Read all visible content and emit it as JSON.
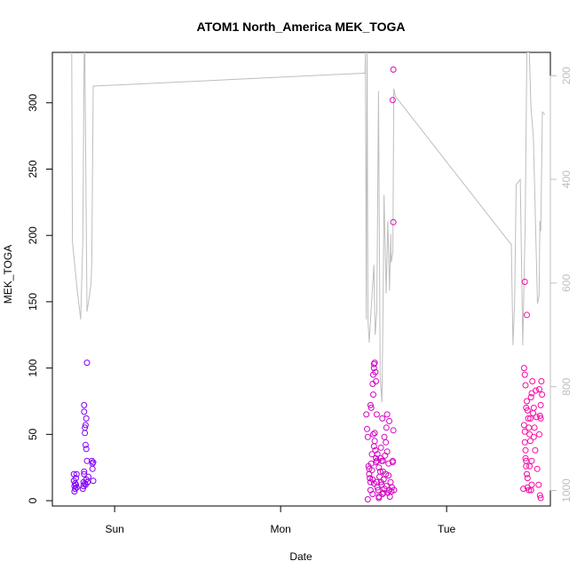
{
  "chart_data": {
    "type": "scatter",
    "title": "ATOM1 North_America MEK_TOGA",
    "xlabel": "Date",
    "ylabel": "MEK_TOGA",
    "x_ticks": [
      {
        "label": "Sun",
        "value": 24
      },
      {
        "label": "Mon",
        "value": 48
      },
      {
        "label": "Tue",
        "value": 72
      }
    ],
    "xlim": [
      15,
      87
    ],
    "ylim": [
      -4,
      338
    ],
    "y_ticks": [
      0,
      50,
      100,
      150,
      200,
      250,
      300
    ],
    "y2lim": [
      1030,
      155
    ],
    "y2_ticks": [
      200,
      400,
      600,
      800,
      1000
    ],
    "y2_color": "#bebebe",
    "grid": false,
    "color_scale": {
      "low": "#7a00ff",
      "high": "#ff0aa0",
      "x_low": 15,
      "x_high": 87
    },
    "points": [
      [
        18.1,
        20
      ],
      [
        18.1,
        15
      ],
      [
        18.2,
        11
      ],
      [
        18.2,
        7
      ],
      [
        18.3,
        13
      ],
      [
        18.3,
        9
      ],
      [
        18.4,
        17
      ],
      [
        18.4,
        12
      ],
      [
        18.5,
        10
      ],
      [
        18.5,
        20
      ],
      [
        19.6,
        72
      ],
      [
        19.6,
        67
      ],
      [
        19.7,
        55
      ],
      [
        19.7,
        51
      ],
      [
        19.8,
        57
      ],
      [
        19.8,
        42
      ],
      [
        19.9,
        39
      ],
      [
        19.9,
        62
      ],
      [
        20.0,
        104
      ],
      [
        20.0,
        30
      ],
      [
        19.5,
        11
      ],
      [
        19.5,
        14
      ],
      [
        19.6,
        20
      ],
      [
        19.7,
        13
      ],
      [
        19.8,
        12
      ],
      [
        19.9,
        16
      ],
      [
        20.1,
        14
      ],
      [
        20.2,
        18
      ],
      [
        19.4,
        9
      ],
      [
        19.6,
        22
      ],
      [
        20.7,
        30
      ],
      [
        20.8,
        28
      ],
      [
        20.8,
        24
      ],
      [
        20.9,
        15
      ],
      [
        20.9,
        29
      ],
      [
        60.4,
        65
      ],
      [
        60.5,
        54
      ],
      [
        60.6,
        48
      ],
      [
        60.7,
        26
      ],
      [
        60.8,
        24
      ],
      [
        60.8,
        20
      ],
      [
        60.9,
        17
      ],
      [
        61.0,
        14
      ],
      [
        61.1,
        28
      ],
      [
        61.2,
        23
      ],
      [
        60.6,
        1
      ],
      [
        61.0,
        8
      ],
      [
        61.3,
        5
      ],
      [
        61.5,
        13
      ],
      [
        61.2,
        35
      ],
      [
        61.4,
        50
      ],
      [
        61.0,
        72
      ],
      [
        61.1,
        70
      ],
      [
        61.3,
        88
      ],
      [
        61.4,
        95
      ],
      [
        61.5,
        100
      ],
      [
        61.6,
        104
      ],
      [
        61.7,
        97
      ],
      [
        61.8,
        90
      ],
      [
        61.4,
        80
      ],
      [
        61.6,
        45
      ],
      [
        61.7,
        38
      ],
      [
        61.8,
        32
      ],
      [
        61.9,
        30
      ],
      [
        62.0,
        35
      ],
      [
        61.6,
        51
      ],
      [
        61.5,
        41
      ],
      [
        61.9,
        14
      ],
      [
        62.0,
        10
      ],
      [
        62.1,
        8
      ],
      [
        62.2,
        25
      ],
      [
        62.3,
        18
      ],
      [
        62.2,
        2
      ],
      [
        62.4,
        32
      ],
      [
        62.5,
        40
      ],
      [
        62.6,
        30
      ],
      [
        62.6,
        12
      ],
      [
        62.7,
        5
      ],
      [
        62.8,
        22
      ],
      [
        62.9,
        6
      ],
      [
        63.0,
        9
      ],
      [
        62.9,
        16
      ],
      [
        63.1,
        34
      ],
      [
        63.2,
        44
      ],
      [
        63.3,
        55
      ],
      [
        63.4,
        65
      ],
      [
        63.2,
        20
      ],
      [
        63.3,
        11
      ],
      [
        63.5,
        6
      ],
      [
        63.6,
        28
      ],
      [
        63.7,
        8
      ],
      [
        63.8,
        3
      ],
      [
        63.7,
        60
      ],
      [
        63.9,
        14
      ],
      [
        64.0,
        7
      ],
      [
        64.1,
        10
      ],
      [
        64.2,
        30
      ],
      [
        64.3,
        53
      ],
      [
        64.2,
        29
      ],
      [
        64.4,
        8
      ],
      [
        62.7,
        62
      ],
      [
        61.9,
        65
      ],
      [
        63.0,
        48
      ],
      [
        62.4,
        22
      ],
      [
        62.5,
        14
      ],
      [
        64.3,
        325
      ],
      [
        64.2,
        302
      ],
      [
        64.3,
        210
      ],
      [
        61.5,
        103
      ],
      [
        61.3,
        16
      ],
      [
        62.2,
        3
      ],
      [
        63.6,
        19
      ],
      [
        62.8,
        30
      ],
      [
        61.8,
        29
      ],
      [
        63.4,
        37
      ],
      [
        83.2,
        100
      ],
      [
        83.3,
        95
      ],
      [
        83.4,
        87
      ],
      [
        83.5,
        70
      ],
      [
        83.6,
        75
      ],
      [
        83.7,
        68
      ],
      [
        83.8,
        62
      ],
      [
        83.9,
        55
      ],
      [
        84.0,
        50
      ],
      [
        84.1,
        45
      ],
      [
        83.2,
        57
      ],
      [
        83.3,
        52
      ],
      [
        83.3,
        44
      ],
      [
        83.4,
        38
      ],
      [
        83.4,
        32
      ],
      [
        83.5,
        30
      ],
      [
        83.5,
        26
      ],
      [
        83.6,
        20
      ],
      [
        83.7,
        17
      ],
      [
        83.7,
        10
      ],
      [
        83.9,
        8
      ],
      [
        84.2,
        8
      ],
      [
        84.3,
        30
      ],
      [
        84.3,
        12
      ],
      [
        84.1,
        62
      ],
      [
        84.2,
        78
      ],
      [
        84.3,
        81
      ],
      [
        84.4,
        90
      ],
      [
        84.5,
        66
      ],
      [
        84.6,
        70
      ],
      [
        84.6,
        48
      ],
      [
        84.7,
        55
      ],
      [
        84.8,
        38
      ],
      [
        84.9,
        83
      ],
      [
        85.0,
        63
      ],
      [
        85.1,
        24
      ],
      [
        85.3,
        12
      ],
      [
        85.4,
        84
      ],
      [
        85.5,
        64
      ],
      [
        85.6,
        72
      ],
      [
        85.7,
        90
      ],
      [
        85.8,
        80
      ],
      [
        85.4,
        50
      ],
      [
        85.6,
        62
      ],
      [
        85.5,
        4
      ],
      [
        85.6,
        2
      ],
      [
        83.1,
        9
      ],
      [
        83.3,
        165
      ],
      [
        83.6,
        140
      ],
      [
        84.0,
        26
      ]
    ],
    "line_series": {
      "color": "#bebebe",
      "axis": "y2",
      "points": [
        [
          17.8,
          155
        ],
        [
          17.9,
          520
        ],
        [
          18.2,
          560
        ],
        [
          18.6,
          615
        ],
        [
          19.1,
          670
        ],
        [
          19.4,
          520
        ],
        [
          19.6,
          155
        ],
        [
          19.7,
          155
        ],
        [
          20.0,
          655
        ],
        [
          20.3,
          630
        ],
        [
          20.6,
          600
        ],
        [
          20.7,
          560
        ],
        [
          20.9,
          220
        ],
        [
          51.2,
          195
        ],
        [
          51.3,
          155
        ],
        [
          51.5,
          670
        ],
        [
          51.7,
          155
        ],
        [
          51.9,
          670
        ],
        [
          52.2,
          715
        ],
        [
          52.6,
          660
        ],
        [
          53.3,
          565
        ],
        [
          53.6,
          700
        ],
        [
          54.0,
          655
        ],
        [
          54.4,
          230
        ],
        [
          54.8,
          780
        ],
        [
          55.2,
          830
        ],
        [
          55.4,
          700
        ],
        [
          55.7,
          430
        ],
        [
          56.2,
          620
        ],
        [
          56.6,
          480
        ],
        [
          57.0,
          615
        ],
        [
          57.3,
          505
        ],
        [
          57.4,
          560
        ],
        [
          57.8,
          540
        ],
        [
          58.0,
          225
        ],
        [
          58.4,
          240
        ],
        [
          69.1,
          520
        ],
        [
          69.4,
          525
        ],
        [
          69.6,
          720
        ],
        [
          69.8,
          640
        ],
        [
          70.0,
          410
        ],
        [
          70.5,
          400
        ],
        [
          70.8,
          720
        ],
        [
          71.1,
          480
        ],
        [
          71.3,
          155
        ],
        [
          71.6,
          155
        ],
        [
          71.8,
          260
        ],
        [
          72.1,
          320
        ],
        [
          72.6,
          640
        ],
        [
          72.8,
          625
        ],
        [
          72.9,
          480
        ],
        [
          73.0,
          500
        ],
        [
          73.2,
          270
        ],
        [
          73.5,
          275
        ]
      ]
    },
    "segments_x": [
      {
        "from": 17.8,
        "to": 20.9,
        "map_to": [
          17.8,
          20.9
        ]
      },
      {
        "from": 51.2,
        "to": 58.4,
        "map_to": [
          60.2,
          64.6
        ]
      },
      {
        "from": 69.1,
        "to": 73.5,
        "map_to": [
          81.0,
          86.2
        ]
      }
    ]
  }
}
